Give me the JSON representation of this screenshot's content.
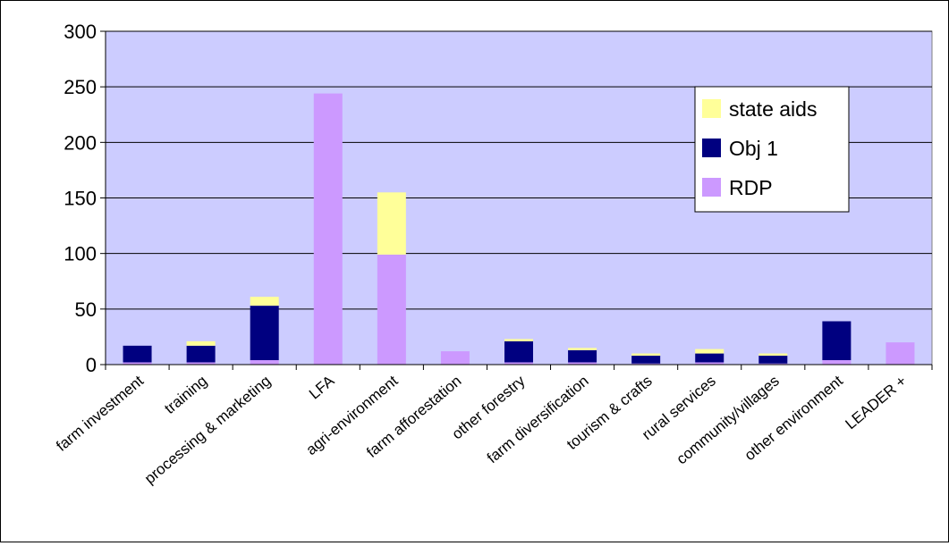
{
  "chart_data": {
    "type": "bar",
    "stacked": true,
    "title": "",
    "xlabel": "",
    "ylabel": "",
    "ylim": [
      0,
      300
    ],
    "yticks": [
      0,
      50,
      100,
      150,
      200,
      250,
      300
    ],
    "grid": true,
    "legend_position": "top-right",
    "plot_background": "#ccccff",
    "categories": [
      "farm investment",
      "training",
      "processing & marketing",
      "LFA",
      "agri-environment",
      "farm afforestation",
      "other forestry",
      "farm diversification",
      "tourism & crafts",
      "rural services",
      "community/villages",
      "other environment",
      "LEADER +"
    ],
    "series": [
      {
        "name": "RDP",
        "color": "#cc99ff",
        "values": [
          2,
          2,
          4,
          244,
          99,
          12,
          2,
          2,
          1,
          2,
          1,
          4,
          20
        ]
      },
      {
        "name": "Obj 1",
        "color": "#000080",
        "values": [
          15,
          15,
          49,
          0,
          0,
          0,
          19,
          11,
          7,
          8,
          7,
          35,
          0
        ]
      },
      {
        "name": "state aids",
        "color": "#ffff99",
        "values": [
          0,
          4,
          8,
          0,
          56,
          0,
          2,
          2,
          2,
          4,
          2,
          0,
          0
        ]
      }
    ]
  }
}
